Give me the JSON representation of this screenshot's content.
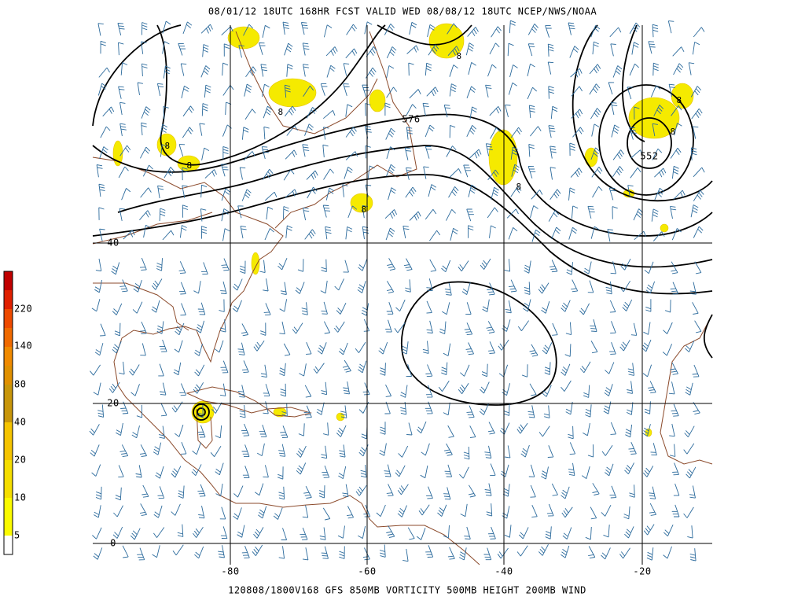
{
  "header": {
    "title": "08/01/12 18UTC  168HR  FCST VALID WED 08/08/12 18UTC  NCEP/NWS/NOAA"
  },
  "footer": {
    "caption": "120808/1800V168 GFS  850MB VORTICITY 500MB HEIGHT 200MB WIND"
  },
  "map": {
    "latitude_labels": [
      "40",
      "20",
      "0"
    ],
    "longitude_labels": [
      "-80",
      "-60",
      "-40",
      "-20"
    ],
    "contour_labels": [
      "576",
      "552"
    ],
    "vorticity_labels": [
      "8",
      "8",
      "8",
      "8",
      "8",
      "8",
      "8",
      "8"
    ]
  },
  "colorbar": {
    "labels": [
      "220",
      "140",
      "80",
      "40",
      "20",
      "10",
      "5"
    ]
  }
}
